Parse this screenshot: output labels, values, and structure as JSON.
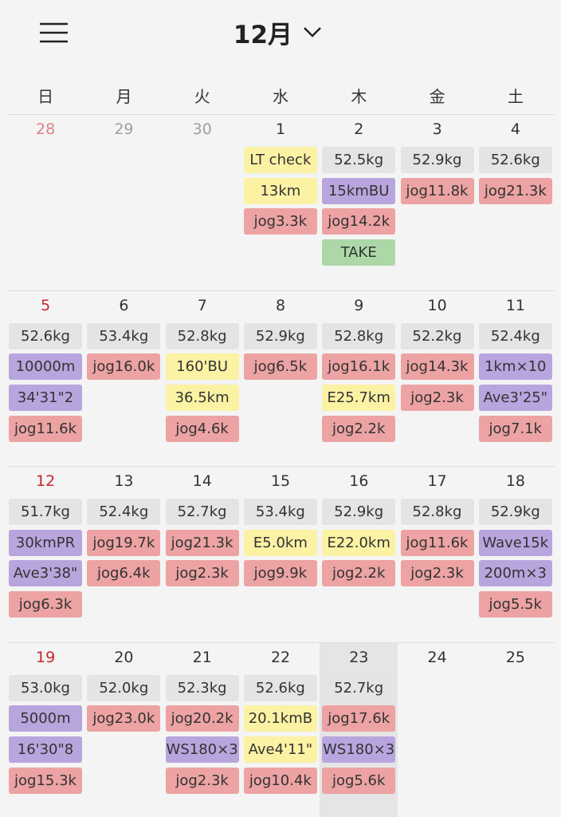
{
  "header": {
    "title": "12月"
  },
  "weekdays": [
    "日",
    "月",
    "火",
    "水",
    "木",
    "金",
    "土"
  ],
  "weeks": [
    [
      {
        "date": 28,
        "muted": true,
        "events": []
      },
      {
        "date": 29,
        "muted": true,
        "events": []
      },
      {
        "date": 30,
        "muted": true,
        "events": []
      },
      {
        "date": 1,
        "events": [
          {
            "text": "LT check",
            "color": "#fbf2a4"
          },
          {
            "text": "13km",
            "color": "#fbf2a4"
          },
          {
            "text": "jog3.3k",
            "color": "#eda3a3"
          }
        ]
      },
      {
        "date": 2,
        "events": [
          {
            "text": "52.5kg",
            "color": "#e4e4e4"
          },
          {
            "text": "15kmBU",
            "color": "#b8a5de"
          },
          {
            "text": "jog14.2k",
            "color": "#eda3a3"
          },
          {
            "text": "TAKE",
            "color": "#acd8a8"
          }
        ]
      },
      {
        "date": 3,
        "events": [
          {
            "text": "52.9kg",
            "color": "#e4e4e4"
          },
          {
            "text": "jog11.8k",
            "color": "#eda3a3"
          }
        ]
      },
      {
        "date": 4,
        "events": [
          {
            "text": "52.6kg",
            "color": "#e4e4e4"
          },
          {
            "text": "jog21.3k",
            "color": "#eda3a3"
          }
        ]
      }
    ],
    [
      {
        "date": 5,
        "events": [
          {
            "text": "52.6kg",
            "color": "#e4e4e4"
          },
          {
            "text": "10000m",
            "color": "#b8a5de"
          },
          {
            "text": "34'31\"2",
            "color": "#b8a5de"
          },
          {
            "text": "jog11.6k",
            "color": "#eda3a3"
          }
        ]
      },
      {
        "date": 6,
        "events": [
          {
            "text": "53.4kg",
            "color": "#e4e4e4"
          },
          {
            "text": "jog16.0k",
            "color": "#eda3a3"
          }
        ]
      },
      {
        "date": 7,
        "events": [
          {
            "text": "52.8kg",
            "color": "#e4e4e4"
          },
          {
            "text": "160'BU",
            "color": "#fbf2a4"
          },
          {
            "text": "36.5km",
            "color": "#fbf2a4"
          },
          {
            "text": "jog4.6k",
            "color": "#eda3a3"
          }
        ]
      },
      {
        "date": 8,
        "events": [
          {
            "text": "52.9kg",
            "color": "#e4e4e4"
          },
          {
            "text": "jog6.5k",
            "color": "#eda3a3"
          }
        ]
      },
      {
        "date": 9,
        "events": [
          {
            "text": "52.8kg",
            "color": "#e4e4e4"
          },
          {
            "text": "jog16.1k",
            "color": "#eda3a3"
          },
          {
            "text": "E25.7km",
            "color": "#fbf2a4"
          },
          {
            "text": "jog2.2k",
            "color": "#eda3a3"
          }
        ]
      },
      {
        "date": 10,
        "events": [
          {
            "text": "52.2kg",
            "color": "#e4e4e4"
          },
          {
            "text": "jog14.3k",
            "color": "#eda3a3"
          },
          {
            "text": "jog2.3k",
            "color": "#eda3a3"
          }
        ]
      },
      {
        "date": 11,
        "events": [
          {
            "text": "52.4kg",
            "color": "#e4e4e4"
          },
          {
            "text": "1km×10",
            "color": "#b8a5de"
          },
          {
            "text": "Ave3'25\"",
            "color": "#b8a5de"
          },
          {
            "text": "jog7.1k",
            "color": "#eda3a3"
          }
        ]
      }
    ],
    [
      {
        "date": 12,
        "events": [
          {
            "text": "51.7kg",
            "color": "#e4e4e4"
          },
          {
            "text": "30kmPR",
            "color": "#b8a5de"
          },
          {
            "text": "Ave3'38\"",
            "color": "#b8a5de"
          },
          {
            "text": "jog6.3k",
            "color": "#eda3a3"
          }
        ]
      },
      {
        "date": 13,
        "events": [
          {
            "text": "52.4kg",
            "color": "#e4e4e4"
          },
          {
            "text": "jog19.7k",
            "color": "#eda3a3"
          },
          {
            "text": "jog6.4k",
            "color": "#eda3a3"
          }
        ]
      },
      {
        "date": 14,
        "events": [
          {
            "text": "52.7kg",
            "color": "#e4e4e4"
          },
          {
            "text": "jog21.3k",
            "color": "#eda3a3"
          },
          {
            "text": "jog2.3k",
            "color": "#eda3a3"
          }
        ]
      },
      {
        "date": 15,
        "events": [
          {
            "text": "53.4kg",
            "color": "#e4e4e4"
          },
          {
            "text": "E5.0km",
            "color": "#fbf2a4"
          },
          {
            "text": "jog9.9k",
            "color": "#eda3a3"
          }
        ]
      },
      {
        "date": 16,
        "events": [
          {
            "text": "52.9kg",
            "color": "#e4e4e4"
          },
          {
            "text": "E22.0km",
            "color": "#fbf2a4"
          },
          {
            "text": "jog2.2k",
            "color": "#eda3a3"
          }
        ]
      },
      {
        "date": 17,
        "events": [
          {
            "text": "52.8kg",
            "color": "#e4e4e4"
          },
          {
            "text": "jog11.6k",
            "color": "#eda3a3"
          },
          {
            "text": "jog2.3k",
            "color": "#eda3a3"
          }
        ]
      },
      {
        "date": 18,
        "events": [
          {
            "text": "52.9kg",
            "color": "#e4e4e4"
          },
          {
            "text": "Wave15k",
            "color": "#b8a5de"
          },
          {
            "text": "200m×3",
            "color": "#b8a5de"
          },
          {
            "text": "jog5.5k",
            "color": "#eda3a3"
          }
        ]
      }
    ],
    [
      {
        "date": 19,
        "events": [
          {
            "text": "53.0kg",
            "color": "#e4e4e4"
          },
          {
            "text": "5000m",
            "color": "#b8a5de"
          },
          {
            "text": "16'30\"8",
            "color": "#b8a5de"
          },
          {
            "text": "jog15.3k",
            "color": "#eda3a3"
          }
        ]
      },
      {
        "date": 20,
        "events": [
          {
            "text": "52.0kg",
            "color": "#e4e4e4"
          },
          {
            "text": "jog23.0k",
            "color": "#eda3a3"
          }
        ]
      },
      {
        "date": 21,
        "events": [
          {
            "text": "52.3kg",
            "color": "#e4e4e4"
          },
          {
            "text": "jog20.2k",
            "color": "#eda3a3"
          },
          {
            "text": "WS180×3",
            "color": "#b8a5de"
          },
          {
            "text": "jog2.3k",
            "color": "#eda3a3"
          }
        ]
      },
      {
        "date": 22,
        "events": [
          {
            "text": "52.6kg",
            "color": "#e4e4e4"
          },
          {
            "text": "20.1kmB",
            "color": "#fbf2a4"
          },
          {
            "text": "Ave4'11\"",
            "color": "#fbf2a4"
          },
          {
            "text": "jog10.4k",
            "color": "#eda3a3"
          }
        ]
      },
      {
        "date": 23,
        "highlighted": true,
        "events": [
          {
            "text": "52.7kg",
            "color": "#e4e4e4"
          },
          {
            "text": "jog17.6k",
            "color": "#eda3a3"
          },
          {
            "text": "WS180×3",
            "color": "#b8a5de"
          },
          {
            "text": "jog5.6k",
            "color": "#eda3a3"
          }
        ]
      },
      {
        "date": 24,
        "events": []
      },
      {
        "date": 25,
        "events": []
      }
    ]
  ]
}
